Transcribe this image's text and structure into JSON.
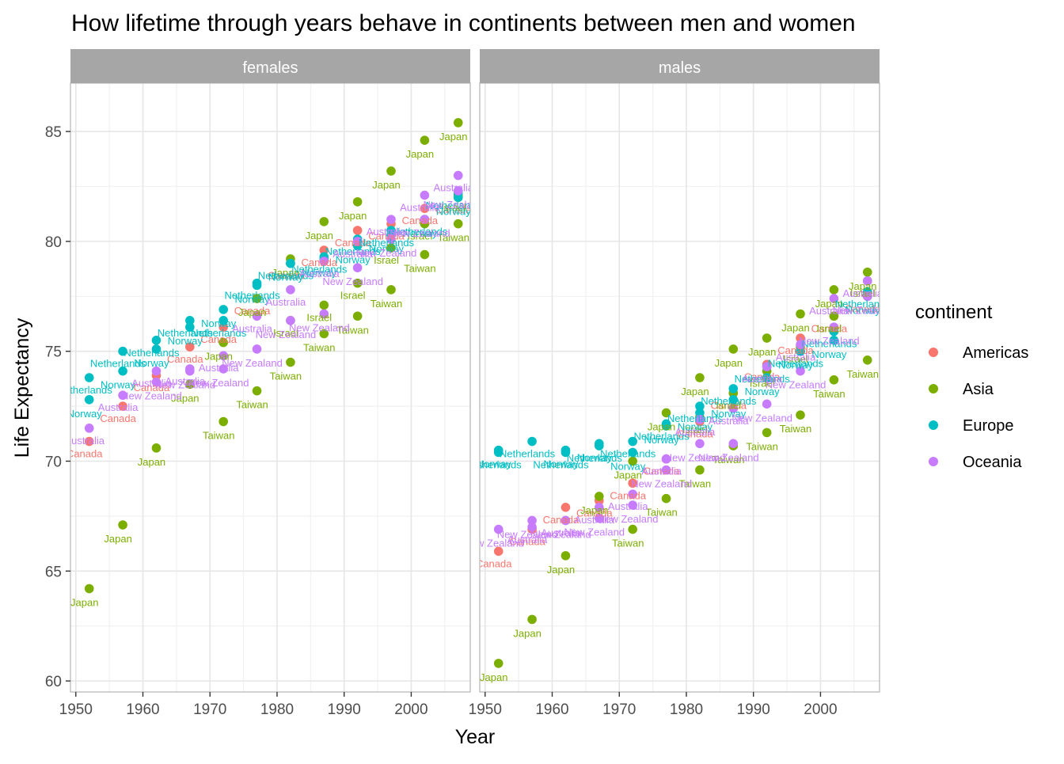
{
  "chart_data": {
    "type": "scatter",
    "title": "How lifetime through years behave in continents between men and women",
    "xlabel": "Year",
    "ylabel": "Life Expectancy",
    "xlim": [
      1949.2,
      2008.8
    ],
    "ylim": [
      59.5,
      87.2
    ],
    "x_ticks": [
      1950,
      1960,
      1970,
      1980,
      1990,
      2000
    ],
    "y_ticks": [
      60,
      65,
      70,
      75,
      80,
      85
    ],
    "grid": true,
    "facets": [
      "females",
      "males"
    ],
    "legend": {
      "title": "continent",
      "position": "right",
      "entries": [
        "Americas",
        "Asia",
        "Europe",
        "Oceania"
      ]
    },
    "colors": {
      "Americas": "#F8766D",
      "Asia": "#7CAE00",
      "Europe": "#00BFC4",
      "Oceania": "#C77CFF",
      "strip": "#a6a6a6",
      "grid": "#e6e6e6",
      "panel_border": "#b3b3b3"
    },
    "panels": [
      {
        "facet": "females",
        "series": [
          {
            "country": "Canada",
            "continent": "Americas",
            "x": [
              1952,
              1957,
              1962,
              1967,
              1972,
              1977,
              1982,
              1987,
              1992,
              1997,
              2002,
              2007
            ],
            "y": [
              70.9,
              72.5,
              73.9,
              75.2,
              76.1,
              77.4,
              79.0,
              79.6,
              80.5,
              80.8,
              81.5,
              82.0
            ]
          },
          {
            "country": "Japan",
            "continent": "Asia",
            "x": [
              1952,
              1957,
              1962,
              1967,
              1972,
              1977,
              1982,
              1987,
              1992,
              1997,
              2002,
              2007
            ],
            "y": [
              64.2,
              67.1,
              70.6,
              73.5,
              75.4,
              77.4,
              79.2,
              80.9,
              81.8,
              83.2,
              84.6,
              85.4
            ]
          },
          {
            "country": "Israel",
            "continent": "Asia",
            "x": [
              1952,
              1957,
              1962,
              1967,
              1972,
              1977,
              1982,
              1987,
              1992,
              1997,
              2002,
              2007
            ],
            "y": [
              null,
              null,
              null,
              null,
              null,
              null,
              76.4,
              77.1,
              78.1,
              79.7,
              80.8,
              82.1
            ]
          },
          {
            "country": "Taiwan",
            "continent": "Asia",
            "x": [
              1952,
              1957,
              1962,
              1967,
              1972,
              1977,
              1982,
              1987,
              1992,
              1997,
              2002,
              2007
            ],
            "y": [
              null,
              null,
              null,
              null,
              71.8,
              73.2,
              74.5,
              75.8,
              76.6,
              77.8,
              79.4,
              80.8
            ]
          },
          {
            "country": "Netherlands",
            "continent": "Europe",
            "x": [
              1952,
              1957,
              1962,
              1967,
              1972,
              1977,
              1982,
              1987,
              1992,
              1997,
              2002,
              2007
            ],
            "y": [
              73.8,
              75.0,
              75.5,
              76.4,
              76.4,
              78.1,
              79.0,
              79.3,
              80.1,
              80.5,
              81.0,
              82.2
            ]
          },
          {
            "country": "Norway",
            "continent": "Europe",
            "x": [
              1952,
              1957,
              1962,
              1967,
              1972,
              1977,
              1982,
              1987,
              1992,
              1997,
              2002,
              2007
            ],
            "y": [
              72.8,
              74.1,
              75.1,
              76.1,
              76.9,
              78.0,
              79.0,
              79.2,
              79.8,
              80.3,
              81.0,
              82.0
            ]
          },
          {
            "country": "Australia",
            "continent": "Oceania",
            "x": [
              1952,
              1957,
              1962,
              1967,
              1972,
              1977,
              1982,
              1987,
              1992,
              1997,
              2002,
              2007
            ],
            "y": [
              71.5,
              73.0,
              74.1,
              74.2,
              74.8,
              76.6,
              77.8,
              79.1,
              80.0,
              81.0,
              82.1,
              83.0
            ]
          },
          {
            "country": "New Zealand",
            "continent": "Oceania",
            "x": [
              1952,
              1957,
              1962,
              1967,
              1972,
              1977,
              1982,
              1987,
              1992,
              1997,
              2002,
              2007
            ],
            "y": [
              null,
              null,
              73.6,
              74.1,
              74.2,
              75.1,
              76.4,
              76.7,
              78.8,
              80.1,
              81.0,
              82.3
            ]
          }
        ]
      },
      {
        "facet": "males",
        "series": [
          {
            "country": "Canada",
            "continent": "Americas",
            "x": [
              1952,
              1957,
              1962,
              1967,
              1972,
              1977,
              1982,
              1987,
              1992,
              1997,
              2002,
              2007
            ],
            "y": [
              65.9,
              66.9,
              67.9,
              68.2,
              69.0,
              70.1,
              71.8,
              73.1,
              74.4,
              75.6,
              76.6,
              77.5
            ]
          },
          {
            "country": "Japan",
            "continent": "Asia",
            "x": [
              1952,
              1957,
              1962,
              1967,
              1972,
              1977,
              1982,
              1987,
              1992,
              1997,
              2002,
              2007
            ],
            "y": [
              60.8,
              62.8,
              65.7,
              68.4,
              70.0,
              72.2,
              73.8,
              75.1,
              75.6,
              76.7,
              77.8,
              78.6
            ]
          },
          {
            "country": "Israel",
            "continent": "Asia",
            "x": [
              1952,
              1957,
              1962,
              1967,
              1972,
              1977,
              1982,
              1987,
              1992,
              1997,
              2002,
              2007
            ],
            "y": [
              null,
              null,
              null,
              null,
              null,
              null,
              72.0,
              73.1,
              74.1,
              75.2,
              76.6,
              78.2
            ]
          },
          {
            "country": "Taiwan",
            "continent": "Asia",
            "x": [
              1952,
              1957,
              1962,
              1967,
              1972,
              1977,
              1982,
              1987,
              1992,
              1997,
              2002,
              2007
            ],
            "y": [
              null,
              null,
              null,
              null,
              66.9,
              68.3,
              69.6,
              70.7,
              71.3,
              72.1,
              73.7,
              74.6
            ]
          },
          {
            "country": "Netherlands",
            "continent": "Europe",
            "x": [
              1952,
              1957,
              1962,
              1967,
              1972,
              1977,
              1982,
              1987,
              1992,
              1997,
              2002,
              2007
            ],
            "y": [
              70.4,
              70.9,
              70.4,
              70.7,
              70.9,
              71.7,
              72.5,
              73.3,
              74.3,
              75.0,
              75.9,
              77.7
            ]
          },
          {
            "country": "Norway",
            "continent": "Europe",
            "x": [
              1952,
              1957,
              1962,
              1967,
              1972,
              1977,
              1982,
              1987,
              1992,
              1997,
              2002,
              2007
            ],
            "y": [
              70.5,
              null,
              70.5,
              70.8,
              70.4,
              71.6,
              72.2,
              72.8,
              73.8,
              75.0,
              75.5,
              77.5
            ]
          },
          {
            "country": "Australia",
            "continent": "Oceania",
            "x": [
              1952,
              1957,
              1962,
              1967,
              1972,
              1977,
              1982,
              1987,
              1992,
              1997,
              2002,
              2007
            ],
            "y": [
              null,
              67.0,
              67.3,
              67.9,
              68.5,
              70.1,
              71.9,
              72.4,
              74.3,
              75.3,
              77.4,
              78.2
            ]
          },
          {
            "country": "New Zealand",
            "continent": "Oceania",
            "x": [
              1952,
              1957,
              1962,
              1967,
              1972,
              1977,
              1982,
              1987,
              1992,
              1997,
              2002,
              2007
            ],
            "y": [
              66.9,
              67.3,
              67.3,
              67.4,
              68.0,
              69.6,
              70.8,
              70.8,
              72.6,
              74.1,
              76.1,
              77.5
            ]
          }
        ]
      }
    ]
  }
}
